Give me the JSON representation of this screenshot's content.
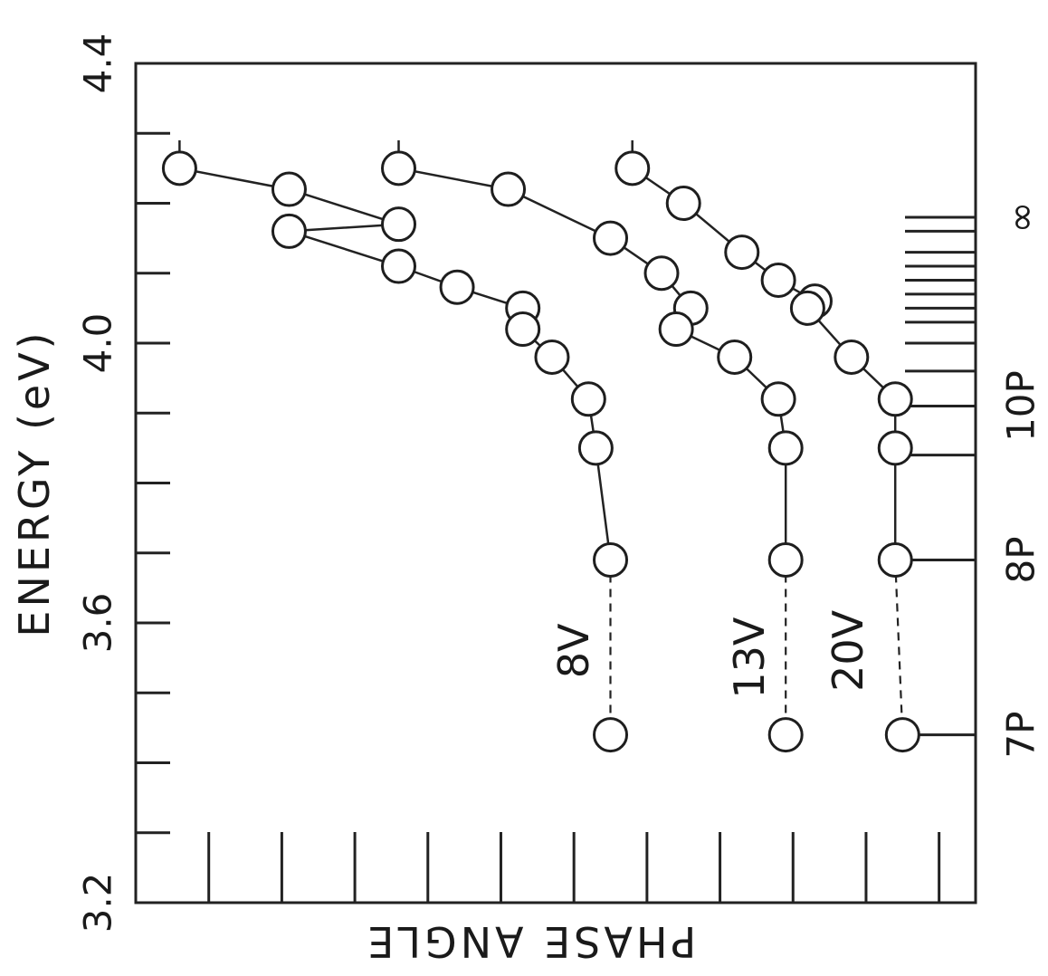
{
  "chart_data": {
    "type": "scatter",
    "orientation": "rotated-90",
    "xlabel": "ENERGY (eV)",
    "ylabel": "PHASE ANGLE",
    "xlim": [
      3.2,
      4.4
    ],
    "ylim": [
      0,
      11.5
    ],
    "x_tick_labels": [
      {
        "value": 3.2,
        "label": "3.2"
      },
      {
        "value": 3.6,
        "label": "3.6"
      },
      {
        "value": 4.0,
        "label": "4.0"
      },
      {
        "value": 4.4,
        "label": "4.4"
      }
    ],
    "x_minor_ticks": [
      3.3,
      3.4,
      3.5,
      3.7,
      3.8,
      3.9,
      4.1,
      4.2,
      4.3
    ],
    "y_ticks": [
      1,
      2,
      3,
      4,
      5,
      6,
      7,
      8,
      9,
      10,
      11
    ],
    "series": [
      {
        "name": "8V",
        "connected": [
          [
            4.29,
            0.6
          ],
          [
            4.25,
            0.6
          ],
          [
            4.22,
            2.1
          ],
          [
            4.17,
            3.6
          ],
          [
            4.16,
            2.1
          ],
          [
            4.11,
            3.6
          ],
          [
            4.08,
            4.4
          ],
          [
            4.05,
            5.3
          ],
          [
            4.02,
            5.3
          ],
          [
            3.98,
            5.7
          ],
          [
            3.92,
            6.2
          ],
          [
            3.85,
            6.3
          ],
          [
            3.69,
            6.5
          ]
        ],
        "dashed_to": [
          3.44,
          6.5
        ]
      },
      {
        "name": "13V",
        "connected": [
          [
            4.29,
            3.6
          ],
          [
            4.25,
            3.6
          ],
          [
            4.22,
            5.1
          ],
          [
            4.15,
            6.5
          ],
          [
            4.1,
            7.2
          ],
          [
            4.05,
            7.6
          ],
          [
            4.02,
            7.4
          ],
          [
            3.98,
            8.2
          ],
          [
            3.92,
            8.8
          ],
          [
            3.85,
            8.9
          ],
          [
            3.69,
            8.9
          ]
        ],
        "dashed_to": [
          3.44,
          8.9
        ]
      },
      {
        "name": "20V",
        "connected": [
          [
            4.29,
            6.8
          ],
          [
            4.25,
            6.8
          ],
          [
            4.2,
            7.5
          ],
          [
            4.13,
            8.3
          ],
          [
            4.09,
            8.8
          ],
          [
            4.06,
            9.3
          ],
          [
            4.05,
            9.2
          ],
          [
            3.98,
            9.8
          ],
          [
            3.92,
            10.4
          ],
          [
            3.85,
            10.4
          ],
          [
            3.69,
            10.4
          ]
        ],
        "dashed_to": [
          3.44,
          10.5
        ]
      }
    ],
    "levels": {
      "marks": [
        3.44,
        3.69,
        3.84,
        3.91,
        3.96,
        4.0,
        4.03,
        4.05,
        4.07,
        4.09,
        4.11,
        4.13,
        4.16,
        4.18
      ],
      "labels": [
        {
          "value": 3.44,
          "text": "7P"
        },
        {
          "value": 3.69,
          "text": "8P"
        },
        {
          "value": 3.91,
          "text": "10P"
        },
        {
          "value": 4.18,
          "text": "∞"
        }
      ]
    }
  }
}
